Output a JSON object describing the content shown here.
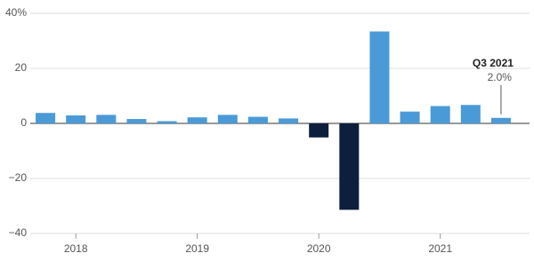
{
  "chart_data": {
    "type": "bar",
    "categories": [
      null,
      "2018",
      null,
      null,
      null,
      "2019",
      null,
      null,
      null,
      "2020",
      null,
      null,
      null,
      "2021",
      null,
      null
    ],
    "series": [
      {
        "color": "#4a9ad8",
        "negative_color": "#0d1f3c",
        "values": [
          3.8,
          2.9,
          3.1,
          1.6,
          0.8,
          2.2,
          3.1,
          2.4,
          1.8,
          -5.1,
          -31.4,
          33.4,
          4.3,
          6.3,
          6.7,
          2.0
        ],
        "value_labels": [
          null,
          null,
          null,
          null,
          null,
          null,
          null,
          null,
          null,
          null,
          null,
          null,
          null,
          null,
          null,
          "2.0%"
        ]
      }
    ],
    "annotation": "Q3 2021",
    "ylim": [
      -40,
      40
    ],
    "yticks": [
      {
        "value": -40,
        "label": "−40"
      },
      {
        "value": -20,
        "label": "−20"
      },
      0,
      20,
      {
        "value": 40,
        "label": "40%"
      }
    ],
    "grid": true
  }
}
